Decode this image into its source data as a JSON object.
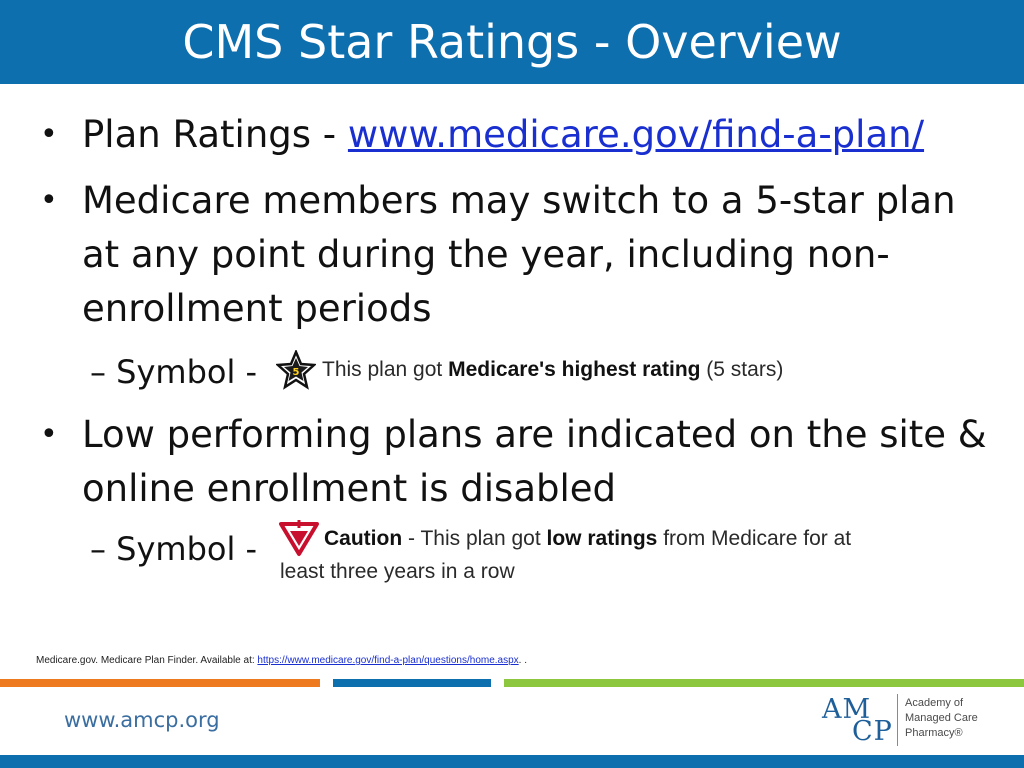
{
  "slide": {
    "title": "CMS Star Ratings - Overview",
    "bullets": [
      {
        "prefix": "Plan Ratings - ",
        "link": "www.medicare.gov/find-a-plan/"
      },
      {
        "lines": [
          "Medicare members may switch to a 5-star plan",
          "at any point during the year, including non-",
          "enrollment periods"
        ]
      },
      {
        "lines": [
          "Low performing plans are indicated on the site &",
          "online enrollment is disabled"
        ]
      }
    ],
    "subbullets": [
      {
        "text": "– Symbol -"
      },
      {
        "text": "– Symbol -"
      }
    ],
    "star_badge": {
      "icon_number": "5",
      "text_pre": "This plan got ",
      "text_bold": "Medicare's highest rating",
      "text_post": " (5 stars)"
    },
    "caution_badge": {
      "bold_label": "Caution",
      "text_pre": " - This plan got ",
      "text_bold": "low ratings",
      "text_post": " from Medicare for at",
      "line2": "least three years in a row"
    },
    "citation": {
      "text": "Medicare.gov.  Medicare Plan Finder.  Available at: ",
      "link": "https://www.medicare.gov/find-a-plan/questions/home.aspx",
      "suffix": ".  ."
    }
  },
  "footer": {
    "url": "www.amcp.org",
    "logo": {
      "line1": "AM",
      "line2": "CP",
      "words": [
        "Academy of",
        "Managed Care",
        "Pharmacy®"
      ]
    }
  },
  "colors": {
    "primary_blue": "#0d6fae",
    "orange": "#ee7a1f",
    "green": "#8dc63f",
    "link_blue": "#1a2fd0"
  }
}
